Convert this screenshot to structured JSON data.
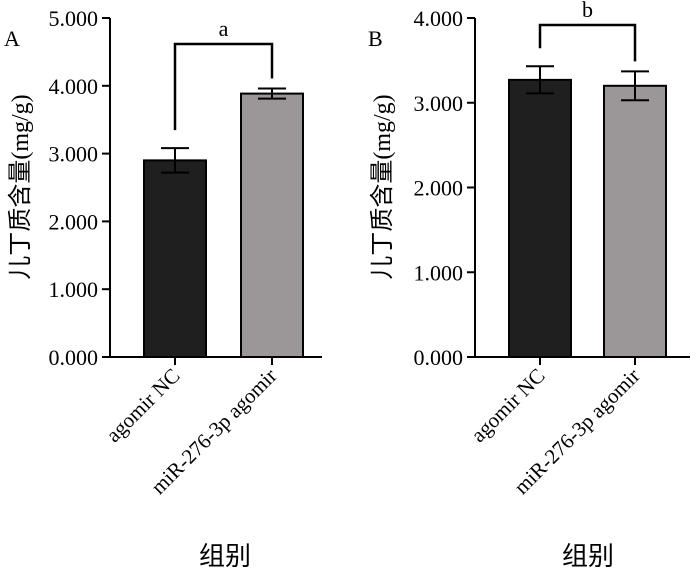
{
  "chart_data": [
    {
      "type": "bar",
      "panel_label": "A",
      "categories": [
        "agomir NC",
        "miR-276-3p agomir"
      ],
      "values": [
        2.9,
        3.885
      ],
      "error": [
        0.18,
        0.075
      ],
      "colors": [
        "#1f1f1f",
        "#9b9697"
      ],
      "ylabel": "儿丁质含量(mg/g)",
      "xlabel": "组别",
      "ylim": [
        0,
        5
      ],
      "yticks": [
        "0.000",
        "1.000",
        "2.000",
        "3.000",
        "4.000",
        "5.000"
      ],
      "ytick_values": [
        0,
        1,
        2,
        3,
        4,
        5
      ],
      "significance": "a"
    },
    {
      "type": "bar",
      "panel_label": "B",
      "categories": [
        "agomir NC",
        "miR-276-3p agomir"
      ],
      "values": [
        3.27,
        3.2
      ],
      "error": [
        0.16,
        0.17
      ],
      "colors": [
        "#1f1f1f",
        "#9b9697"
      ],
      "ylabel": "儿丁质含量(mg/g)",
      "xlabel": "组别",
      "ylim": [
        0,
        4
      ],
      "yticks": [
        "0.000",
        "1.000",
        "2.000",
        "3.000",
        "4.000"
      ],
      "ytick_values": [
        0,
        1,
        2,
        3,
        4
      ],
      "significance": "b"
    }
  ]
}
